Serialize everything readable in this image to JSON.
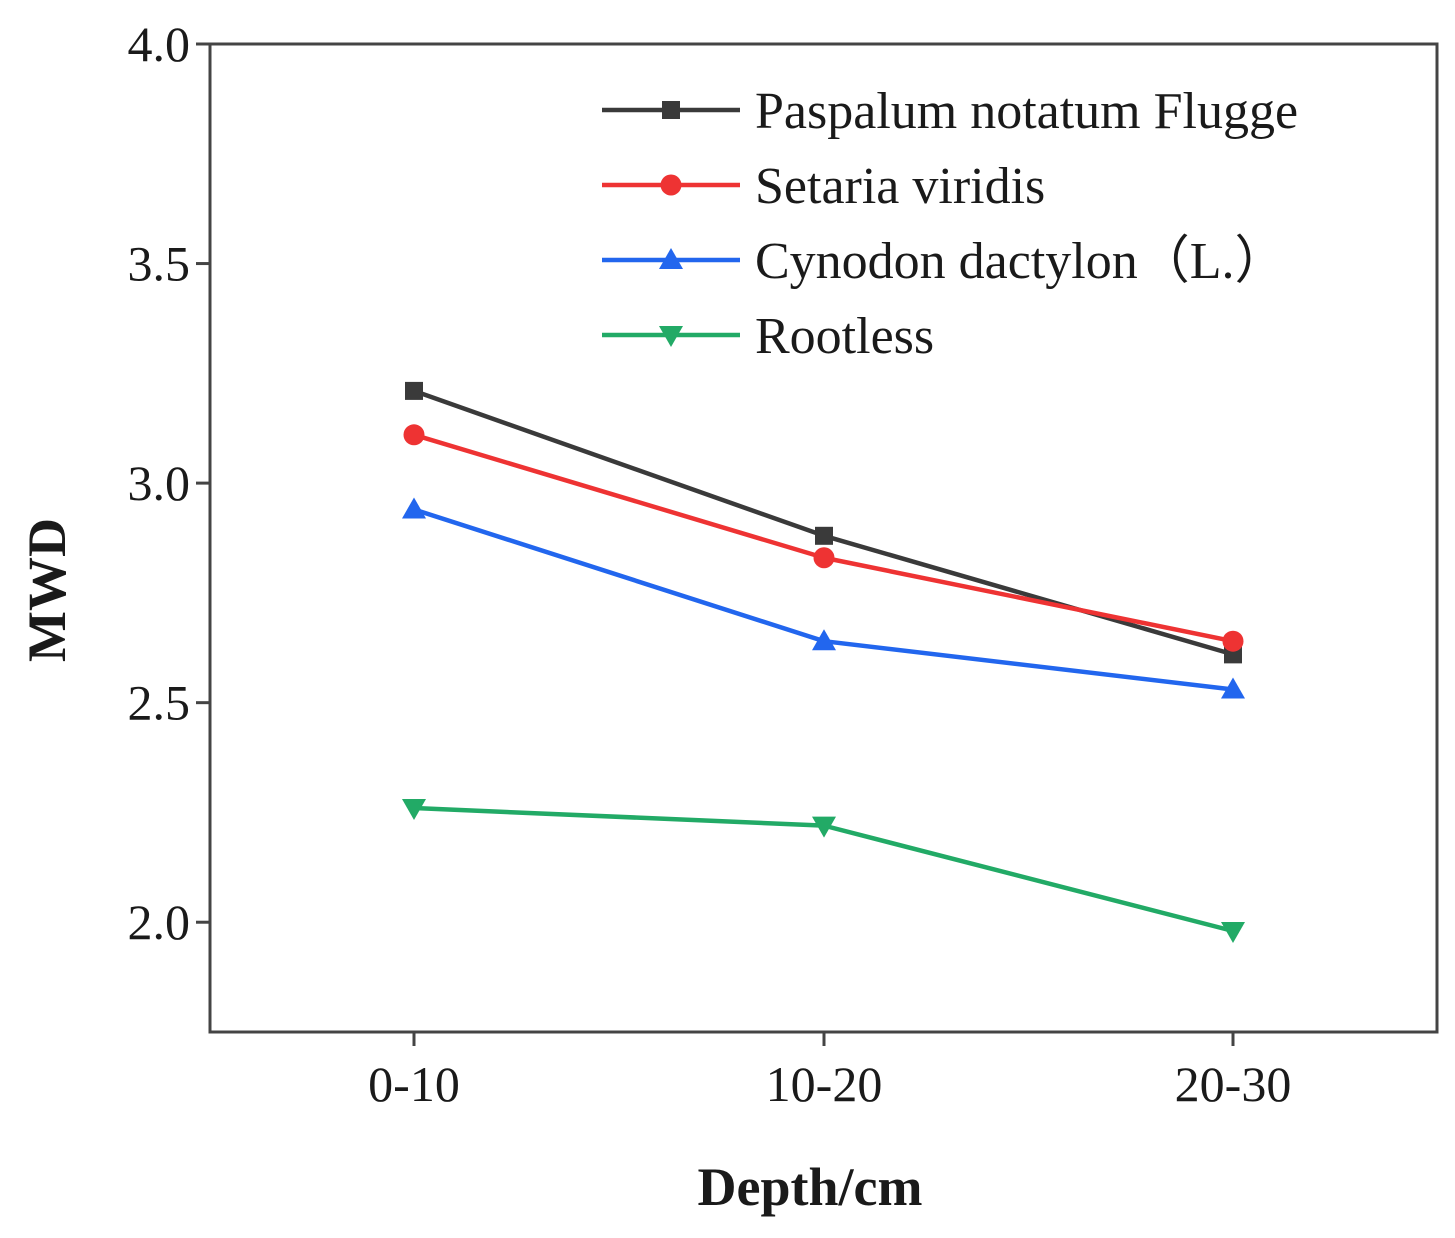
{
  "chart_data": {
    "type": "line",
    "xlabel": "Depth/cm",
    "ylabel": "MWD",
    "categories": [
      "0-10",
      "10-20",
      "20-30"
    ],
    "ylim": [
      1.75,
      4.0
    ],
    "yticks": [
      2.0,
      2.5,
      3.0,
      3.5,
      4.0
    ],
    "ytick_labels": [
      "2.0",
      "2.5",
      "3.0",
      "3.5",
      "4.0"
    ],
    "grid": false,
    "legend_position": "top-right",
    "series": [
      {
        "name": "Paspalum notatum Flugge",
        "values": [
          3.21,
          2.88,
          2.61
        ],
        "color": "#3a3a3a",
        "marker": "square"
      },
      {
        "name": "Setaria viridis",
        "values": [
          3.11,
          2.83,
          2.64
        ],
        "color": "#ee3333",
        "marker": "circle"
      },
      {
        "name": "Cynodon dactylon（L.）",
        "values": [
          2.94,
          2.64,
          2.53
        ],
        "color": "#2266ee",
        "marker": "triangle-up"
      },
      {
        "name": "Rootless",
        "values": [
          2.26,
          2.22,
          1.98
        ],
        "color": "#22aa66",
        "marker": "triangle-down"
      }
    ]
  }
}
